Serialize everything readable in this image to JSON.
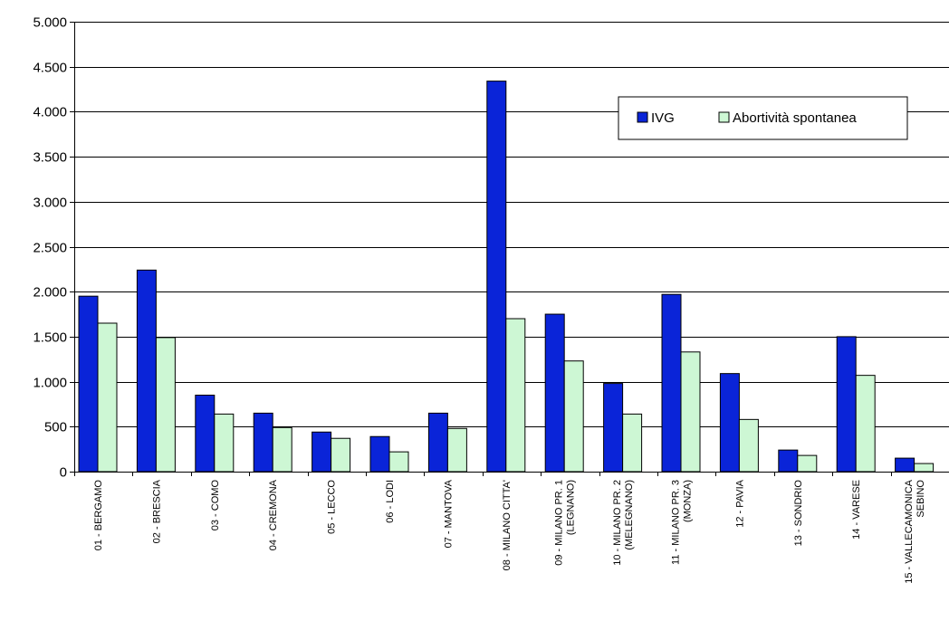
{
  "chart_data": {
    "type": "bar",
    "title": "",
    "xlabel": "",
    "ylabel": "",
    "ylim": [
      0,
      5000
    ],
    "yticks": [
      0,
      500,
      1000,
      1500,
      2000,
      2500,
      3000,
      3500,
      4000,
      4500,
      5000
    ],
    "ytick_labels": [
      "0",
      "500",
      "1.000",
      "1.500",
      "2.000",
      "2.500",
      "3.000",
      "3.500",
      "4.000",
      "4.500",
      "5.000"
    ],
    "grid": true,
    "legend_position": "top-right",
    "categories": [
      [
        "01 - BERGAMO"
      ],
      [
        "02 - BRESCIA"
      ],
      [
        "03 - COMO"
      ],
      [
        "04 - CREMONA"
      ],
      [
        "05 - LECCO"
      ],
      [
        "06 - LODI"
      ],
      [
        "07 - MANTOVA"
      ],
      [
        "08 - MILANO CITTA'"
      ],
      [
        "09 - MILANO PR. 1",
        "(LEGNANO)"
      ],
      [
        "10 - MILANO PR. 2",
        "(MELEGNANO)"
      ],
      [
        "11 - MILANO PR. 3",
        "(MONZA)"
      ],
      [
        "12 - PAVIA"
      ],
      [
        "13 - SONDRIO"
      ],
      [
        "14 - VARESE"
      ],
      [
        "15 - VALLECAMONICA",
        "SEBINO"
      ]
    ],
    "series": [
      {
        "name": "IVG",
        "color": "#0a24d8",
        "values": [
          1950,
          2240,
          850,
          650,
          440,
          390,
          650,
          4340,
          1750,
          980,
          1970,
          1090,
          240,
          1500,
          150
        ]
      },
      {
        "name": "Abortività spontanea",
        "color": "#cdf7d4",
        "values": [
          1650,
          1490,
          640,
          490,
          370,
          220,
          480,
          1700,
          1230,
          640,
          1330,
          580,
          180,
          1070,
          90
        ]
      }
    ]
  }
}
